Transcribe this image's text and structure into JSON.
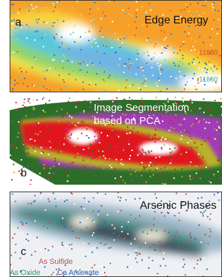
{
  "panels": [
    {
      "letter": "a",
      "title": "Edge Energy",
      "scale_labels": [
        "11880",
        "11860"
      ]
    },
    {
      "letter": "b",
      "title_lines": [
        "Image Segmentation",
        "based on PCA"
      ]
    },
    {
      "letter": "c",
      "title": "Arsenic Phases",
      "legend": [
        "As Sulfide",
        "As Oxide",
        "Ca Arsenate"
      ]
    }
  ]
}
